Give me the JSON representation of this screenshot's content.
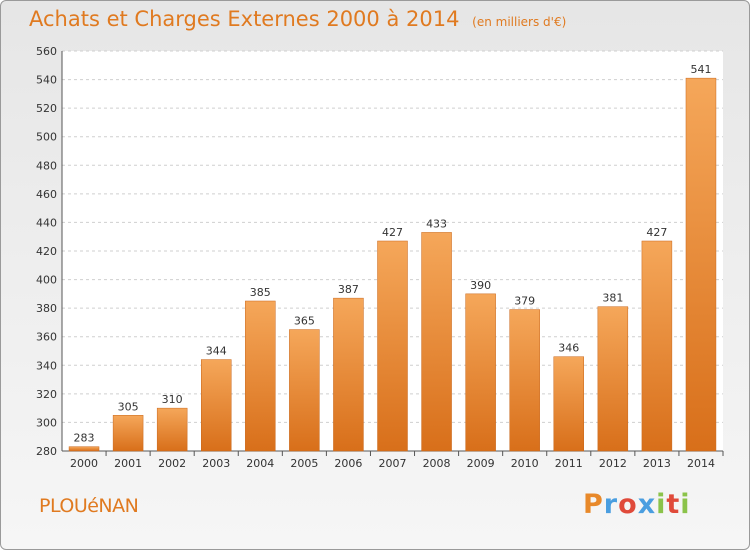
{
  "header": {
    "title": "Achats et Charges Externes 2000 à 2014",
    "unit": "(en milliers d'€)"
  },
  "footer": {
    "town": "PLOUéNAN",
    "brand": "Proxiti"
  },
  "colors": {
    "accent": "#e07a20",
    "bar_light": "#f5a75a",
    "bar_dark": "#d86f1a",
    "brand_letters": [
      "#e8892a",
      "#4a9ee0",
      "#e04a3a",
      "#4a9ee0",
      "#8bc34a",
      "#e04a3a",
      "#8bc34a"
    ]
  },
  "chart_data": {
    "type": "bar",
    "categories": [
      "2000",
      "2001",
      "2002",
      "2003",
      "2004",
      "2005",
      "2006",
      "2007",
      "2008",
      "2009",
      "2010",
      "2011",
      "2012",
      "2013",
      "2014"
    ],
    "values": [
      283,
      305,
      310,
      344,
      385,
      365,
      387,
      427,
      433,
      390,
      379,
      346,
      381,
      427,
      541
    ],
    "data_labels": [
      "283",
      "305",
      "310",
      "344",
      "385",
      "365",
      "387",
      "427",
      "433",
      "390",
      "379",
      "346",
      "381",
      "427",
      "541"
    ],
    "ylim": [
      280,
      560
    ],
    "yticks": [
      280,
      300,
      320,
      340,
      360,
      380,
      400,
      420,
      440,
      460,
      480,
      500,
      520,
      540,
      560
    ],
    "ytick_labels": [
      "280",
      "300",
      "320",
      "340",
      "360",
      "380",
      "400",
      "420",
      "440",
      "460",
      "480",
      "500",
      "520",
      "540",
      "560"
    ],
    "grid": true
  }
}
